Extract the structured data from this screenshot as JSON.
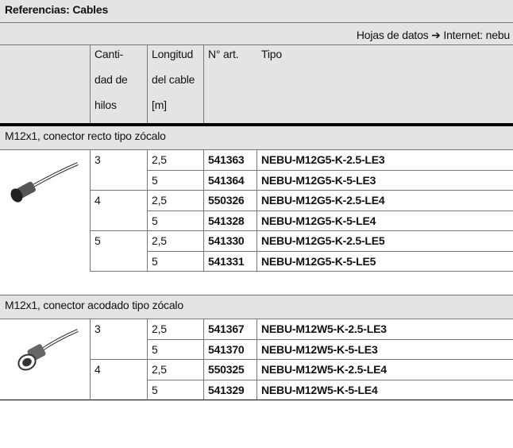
{
  "header": {
    "title": "Referencias: Cables",
    "note": "Hojas de datos ➔ Internet: nebu"
  },
  "table": {
    "columns": [
      [
        "Canti-",
        "dad de",
        "hilos"
      ],
      [
        "Longitud",
        "del cable",
        "[m]"
      ],
      [
        "N° art."
      ],
      [
        "Tipo"
      ]
    ],
    "sections": [
      {
        "title": "M12x1, conector recto tipo zócalo",
        "groups": [
          {
            "wires": 3,
            "rows": [
              {
                "length": "2,5",
                "art": 541363,
                "type": "NEBU-M12G5-K-2.5-LE3"
              },
              {
                "length": "5",
                "art": 541364,
                "type": "NEBU-M12G5-K-5-LE3"
              }
            ]
          },
          {
            "wires": 4,
            "rows": [
              {
                "length": "2,5",
                "art": 550326,
                "type": "NEBU-M12G5-K-2.5-LE4"
              },
              {
                "length": "5",
                "art": 541328,
                "type": "NEBU-M12G5-K-5-LE4"
              }
            ]
          },
          {
            "wires": 5,
            "rows": [
              {
                "length": "2,5",
                "art": 541330,
                "type": "NEBU-M12G5-K-2.5-LE5"
              },
              {
                "length": "5",
                "art": 541331,
                "type": "NEBU-M12G5-K-5-LE5"
              }
            ]
          }
        ]
      },
      {
        "title": "M12x1, conector acodado tipo zócalo",
        "groups": [
          {
            "wires": 3,
            "rows": [
              {
                "length": "2,5",
                "art": 541367,
                "type": "NEBU-M12W5-K-2.5-LE3"
              },
              {
                "length": "5",
                "art": 541370,
                "type": "NEBU-M12W5-K-5-LE3"
              }
            ]
          },
          {
            "wires": 4,
            "rows": [
              {
                "length": "2,5",
                "art": 550325,
                "type": "NEBU-M12W5-K-2.5-LE4"
              },
              {
                "length": "5",
                "art": 541329,
                "type": "NEBU-M12W5-K-5-LE4"
              }
            ]
          }
        ]
      }
    ]
  }
}
